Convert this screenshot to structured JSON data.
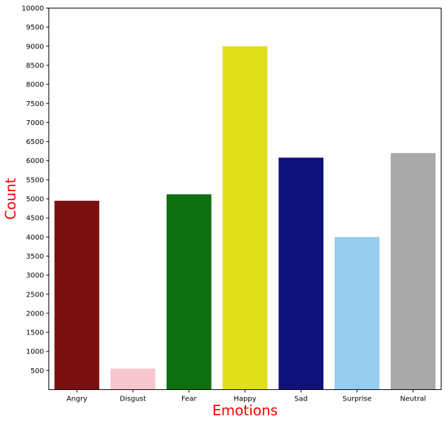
{
  "chart_data": {
    "type": "bar",
    "title": "",
    "xlabel": "Emotions",
    "ylabel": "Count",
    "label_color": "#ff0000",
    "categories": [
      "Angry",
      "Disgust",
      "Fear",
      "Happy",
      "Sad",
      "Surprise",
      "Neutral"
    ],
    "values": [
      4950,
      550,
      5120,
      9000,
      6080,
      4000,
      6200
    ],
    "colors": [
      "#7a1010",
      "#f8c6cf",
      "#0f7010",
      "#e0e018",
      "#10107a",
      "#96ccee",
      "#a9a9a9"
    ],
    "ylim": [
      0,
      10000
    ],
    "yticks": [
      "500",
      "1000",
      "1500",
      "2000",
      "2500",
      "3000",
      "3500",
      "4000",
      "4500",
      "5000",
      "5500",
      "6000",
      "6500",
      "7000",
      "7500",
      "8000",
      "8500",
      "9000",
      "9500",
      "10000"
    ],
    "grid": false,
    "legend": "none"
  }
}
